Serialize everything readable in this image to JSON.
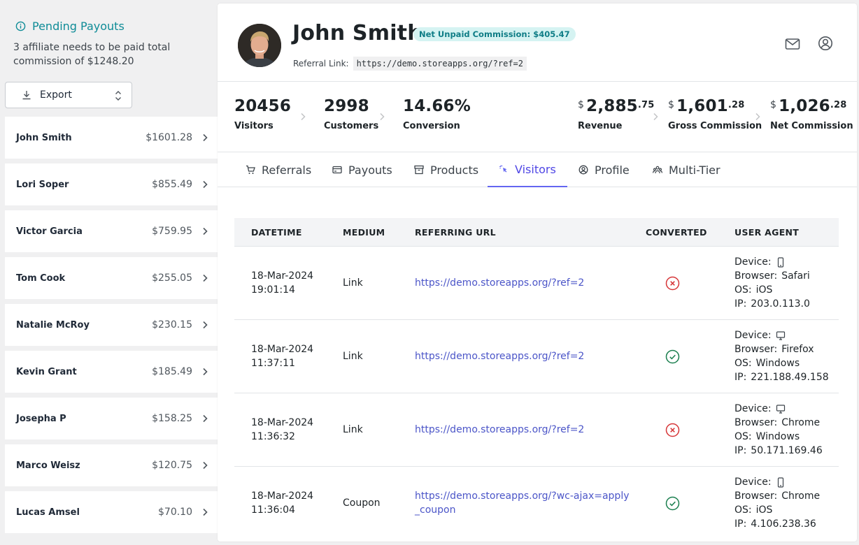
{
  "sidebar": {
    "pending_title": "Pending Payouts",
    "pending_desc": "3 affiliate needs to be paid total commission of $1248.20",
    "export_label": "Export",
    "affiliates": [
      {
        "name": "John Smith",
        "amount": "$1601.28"
      },
      {
        "name": "Lori Soper",
        "amount": "$855.49"
      },
      {
        "name": "Victor Garcia",
        "amount": "$759.95"
      },
      {
        "name": "Tom Cook",
        "amount": "$255.05"
      },
      {
        "name": "Natalie McRoy",
        "amount": "$230.15"
      },
      {
        "name": "Kevin Grant",
        "amount": "$185.49"
      },
      {
        "name": "Josepha P",
        "amount": "$158.25"
      },
      {
        "name": "Marco Weisz",
        "amount": "$120.75"
      },
      {
        "name": "Lucas Amsel",
        "amount": "$70.10"
      }
    ]
  },
  "profile": {
    "name": "John Smith",
    "badge": "Net Unpaid Commission: $405.47",
    "referral_label": "Referral Link:",
    "referral_link": "https://demo.storeapps.org/?ref=2"
  },
  "stats": {
    "visitors": {
      "value": "20456",
      "label": "Visitors"
    },
    "customers": {
      "value": "2998",
      "label": "Customers"
    },
    "conversion": {
      "value": "14.66%",
      "label": "Conversion"
    },
    "revenue": {
      "currency": "$",
      "whole": "2,885",
      "decimal": ".75",
      "label": "Revenue"
    },
    "gross": {
      "currency": "$",
      "whole": "1,601",
      "decimal": ".28",
      "label": "Gross Commission"
    },
    "net": {
      "currency": "$",
      "whole": "1,026",
      "decimal": ".28",
      "label": "Net Commission"
    }
  },
  "tabs": [
    {
      "label": "Referrals",
      "icon": "cart-icon"
    },
    {
      "label": "Payouts",
      "icon": "card-icon"
    },
    {
      "label": "Products",
      "icon": "box-icon"
    },
    {
      "label": "Visitors",
      "icon": "pointer-icon"
    },
    {
      "label": "Profile",
      "icon": "user-circle-icon"
    },
    {
      "label": "Multi-Tier",
      "icon": "team-icon"
    }
  ],
  "active_tab": "Visitors",
  "table": {
    "headers": [
      "DATETIME",
      "MEDIUM",
      "REFERRING URL",
      "CONVERTED",
      "USER AGENT"
    ],
    "ua_labels": {
      "device": "Device:",
      "browser": "Browser:",
      "os": "OS:",
      "ip": "IP:"
    },
    "rows": [
      {
        "date": "18-Mar-2024",
        "time": "19:01:14",
        "medium": "Link",
        "url_l1": "https://demo.storeapps.org/?ref=2",
        "url_l2": "",
        "converted": false,
        "device": "mobile-icon",
        "browser": "Safari",
        "os": "iOS",
        "ip": "203.0.113.0"
      },
      {
        "date": "18-Mar-2024",
        "time": "11:37:11",
        "medium": "Link",
        "url_l1": "https://demo.storeapps.org/?ref=2",
        "url_l2": "",
        "converted": true,
        "device": "desktop-icon",
        "browser": "Firefox",
        "os": "Windows",
        "ip": "221.188.49.158"
      },
      {
        "date": "18-Mar-2024",
        "time": "11:36:32",
        "medium": "Link",
        "url_l1": "https://demo.storeapps.org/?ref=2",
        "url_l2": "",
        "converted": false,
        "device": "desktop-icon",
        "browser": "Chrome",
        "os": "Windows",
        "ip": "50.171.169.46"
      },
      {
        "date": "18-Mar-2024",
        "time": "11:36:04",
        "medium": "Coupon",
        "url_l1": "https://demo.storeapps.org/?wc-ajax=apply",
        "url_l2": "_coupon",
        "converted": true,
        "device": "mobile-icon",
        "browser": "Chrome",
        "os": "iOS",
        "ip": "4.106.238.36"
      }
    ]
  },
  "colors": {
    "accent": "#6366f1",
    "teal": "#0f8c97",
    "success": "#15803d",
    "error": "#dc2626",
    "link": "#4b55c8"
  }
}
